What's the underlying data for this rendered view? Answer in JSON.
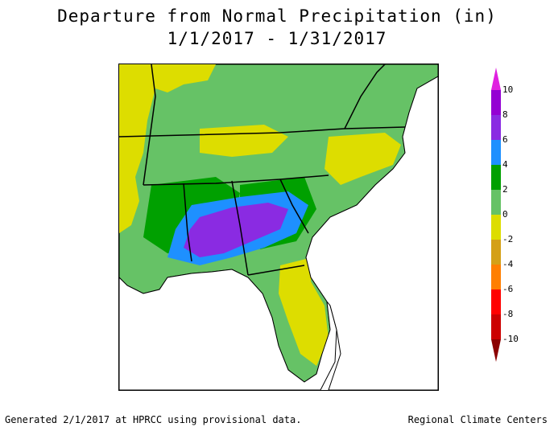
{
  "title_line1": "Departure from Normal Precipitation (in)",
  "title_line2": "1/1/2017 - 1/31/2017",
  "legend": {
    "labels": [
      "10",
      "8",
      "6",
      "4",
      "2",
      "0",
      "-2",
      "-4",
      "-6",
      "-8",
      "-10"
    ],
    "colors": {
      "above_10": "#e020e0",
      "8_to_10": "#9400d3",
      "6_to_8": "#8a2be2",
      "4_to_6": "#1e90ff",
      "2_to_4": "#00a000",
      "0_to_2": "#66c266",
      "-2_to_0": "#dddd00",
      "-4_to_-2": "#d4a017",
      "-6_to_-4": "#ff7f00",
      "-8_to_-6": "#ff0000",
      "-10_to_-8": "#cc0000",
      "below_-10": "#8b0000"
    }
  },
  "footer": {
    "left": "Generated 2/1/2017 at HPRCC using provisional data.",
    "right": "Regional Climate Centers"
  }
}
